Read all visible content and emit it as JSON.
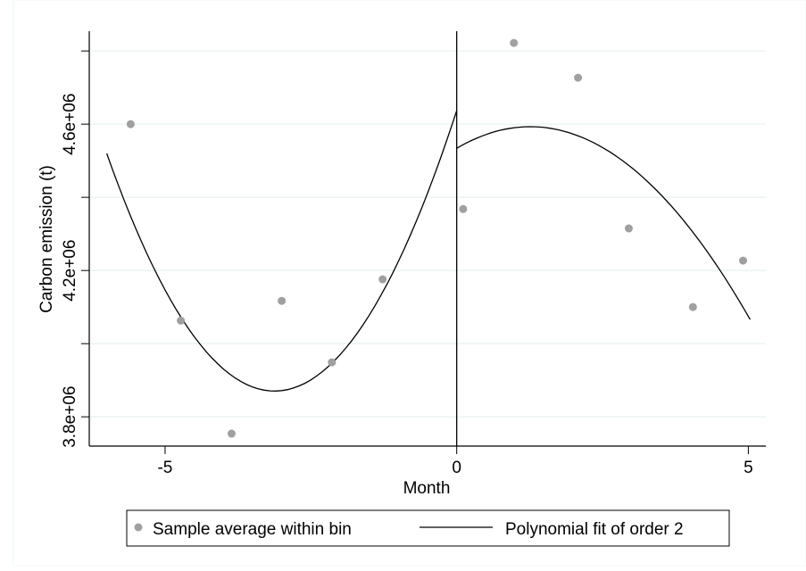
{
  "chart_data": {
    "type": "scatter",
    "title": "",
    "xlabel": "Month",
    "ylabel": "Carbon emission (t)",
    "xlim": [
      -6.3,
      5.3
    ],
    "ylim": [
      3720000,
      4854000
    ],
    "grid": true,
    "x_ticks": [
      {
        "value": -5,
        "label": "-5"
      },
      {
        "value": 0,
        "label": "0"
      },
      {
        "value": 5,
        "label": "5"
      }
    ],
    "y_ticks": [
      {
        "value": 3800000,
        "label": "3.8e+06"
      },
      {
        "value": 4000000,
        "label": ""
      },
      {
        "value": 4200000,
        "label": "4.2e+06"
      },
      {
        "value": 4400000,
        "label": ""
      },
      {
        "value": 4600000,
        "label": "4.6e+06"
      },
      {
        "value": 4800000,
        "label": ""
      }
    ],
    "cutoff_x": 0,
    "series": [
      {
        "name": "Sample average within bin",
        "kind": "scatter",
        "color": "#a0a0a0",
        "x": [
          -5.59,
          -4.73,
          -3.86,
          -3.0,
          -2.14,
          -1.27,
          0.11,
          0.98,
          2.08,
          2.95,
          4.05,
          4.91
        ],
        "y": [
          4600000,
          4063000,
          3754000,
          4117000,
          3949000,
          4176000,
          4368000,
          4822000,
          4727000,
          4315000,
          4100000,
          4227000
        ]
      },
      {
        "name": "Polynomial fit of order 2",
        "kind": "line",
        "color": "#000000",
        "segments": [
          {
            "x_range": [
              -6.0,
              0
            ],
            "coef": [
              4637000,
              490700,
              78530
            ]
          },
          {
            "x_range": [
              0,
              5.03
            ],
            "coef": [
              4534000,
              93600,
              -37100
            ]
          }
        ]
      }
    ],
    "legend": {
      "position": "bottom",
      "entries": [
        "Sample average within bin",
        "Polynomial fit of order 2"
      ]
    }
  }
}
